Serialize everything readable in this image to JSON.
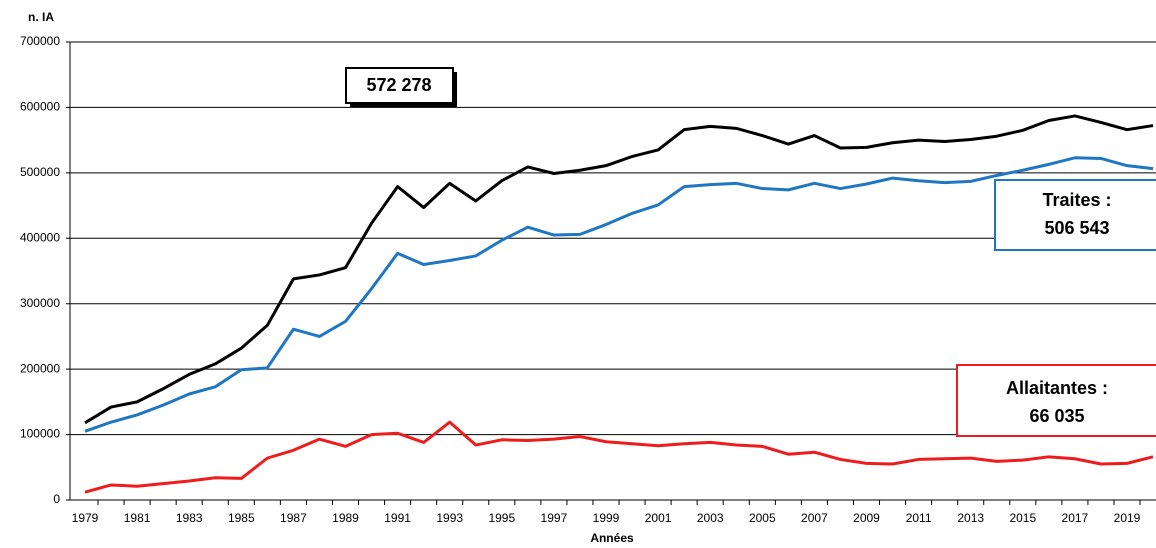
{
  "chart_data": {
    "type": "line",
    "y_label": "n. IA",
    "x_label": "Années",
    "categories": [
      "1979",
      null,
      "1981",
      null,
      "1983",
      null,
      "1985",
      null,
      "1987",
      null,
      "1989",
      null,
      "1991",
      null,
      "1993",
      null,
      "1995",
      null,
      "1997",
      null,
      "1999",
      null,
      "2001",
      null,
      "2003",
      null,
      "2005",
      null,
      "2007",
      null,
      "2009",
      null,
      "2011",
      null,
      "2013",
      null,
      "2015",
      null,
      "2017",
      null,
      "2019",
      null
    ],
    "series": [
      {
        "color": "#000000",
        "values": [
          118000,
          142000,
          150000,
          170000,
          192000,
          208000,
          232000,
          267000,
          338000,
          344000,
          355000,
          423000,
          479000,
          447000,
          484000,
          457000,
          488000,
          509000,
          499000,
          504000,
          511000,
          525000,
          535000,
          566000,
          571000,
          568000,
          557000,
          544000,
          557000,
          538000,
          539000,
          546000,
          550000,
          548000,
          551000,
          556000,
          565000,
          580000,
          587000,
          577000,
          566000,
          572278
        ]
      },
      {
        "color": "#1f77c4",
        "values": [
          105000,
          119000,
          130000,
          145000,
          162000,
          173000,
          199000,
          202000,
          261000,
          250000,
          273000,
          323000,
          377000,
          360000,
          366000,
          373000,
          397000,
          417000,
          405000,
          406000,
          421000,
          438000,
          451000,
          479000,
          482000,
          484000,
          476000,
          474000,
          484000,
          476000,
          483000,
          492000,
          488000,
          485000,
          487000,
          496000,
          504000,
          513000,
          523000,
          522000,
          511000,
          506543
        ]
      },
      {
        "color": "#ee1c1c",
        "values": [
          12000,
          23000,
          21000,
          25000,
          29000,
          34000,
          33000,
          64000,
          76000,
          93000,
          82000,
          100000,
          102000,
          88000,
          119000,
          84000,
          92000,
          91000,
          93000,
          97000,
          89000,
          86000,
          83000,
          86000,
          88000,
          84000,
          82000,
          70000,
          73000,
          62000,
          56000,
          55000,
          62000,
          63000,
          64000,
          59000,
          61000,
          66000,
          63000,
          55000,
          56000,
          66035
        ]
      }
    ],
    "ylim": [
      0,
      700000
    ],
    "yticks": [
      0,
      100000,
      200000,
      300000,
      400000,
      500000,
      600000,
      700000
    ],
    "grid": true,
    "annotations": [
      {
        "lines": [
          "572 278"
        ]
      },
      {
        "lines": [
          "Traites :",
          "506 543"
        ]
      },
      {
        "lines": [
          "Allaitantes :",
          "66 035"
        ]
      }
    ]
  }
}
